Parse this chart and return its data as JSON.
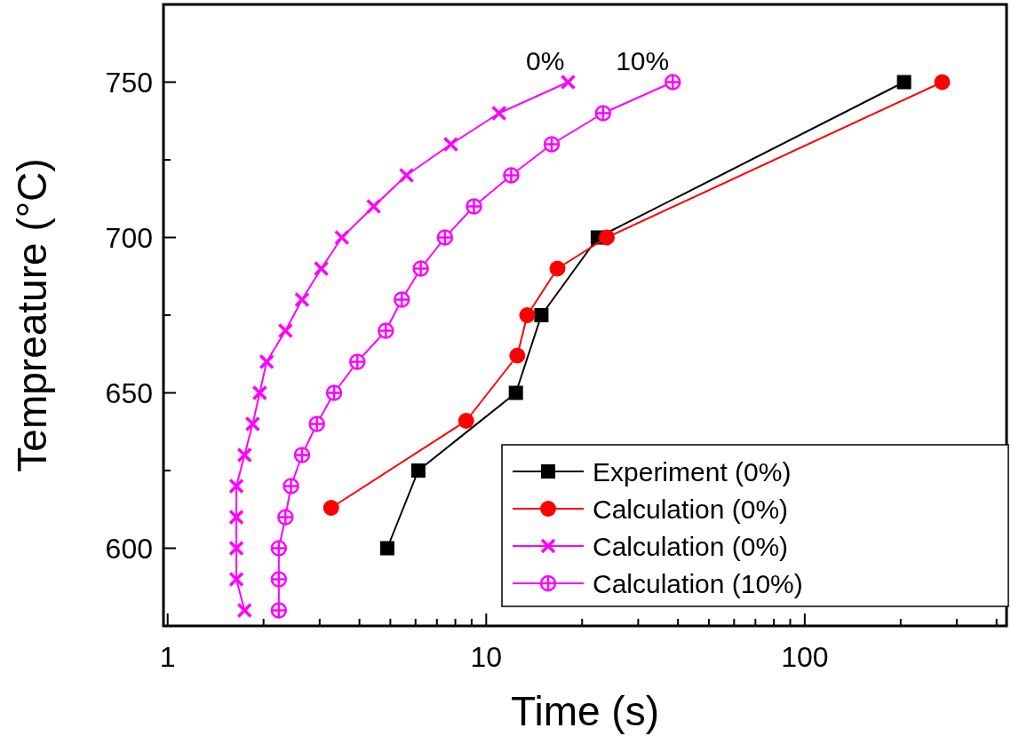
{
  "chart_data": {
    "type": "line",
    "xlabel": "Time  (s)",
    "ylabel": "Tempreature  (°C)",
    "log": "x",
    "xlim": [
      0.97,
      430
    ],
    "ylim": [
      575,
      775
    ],
    "xticks": [
      1,
      {
        "value": 2,
        "label": null
      },
      {
        "value": 3,
        "label": null
      },
      {
        "value": 4,
        "label": null
      },
      {
        "value": 5,
        "label": null
      },
      {
        "value": 6,
        "label": null
      },
      {
        "value": 7,
        "label": null
      },
      {
        "value": 8,
        "label": null
      },
      {
        "value": 9,
        "label": null
      },
      10,
      {
        "value": 20,
        "label": null
      },
      {
        "value": 30,
        "label": null
      },
      {
        "value": 40,
        "label": null
      },
      {
        "value": 50,
        "label": null
      },
      {
        "value": 60,
        "label": null
      },
      {
        "value": 70,
        "label": null
      },
      {
        "value": 80,
        "label": null
      },
      {
        "value": 90,
        "label": null
      },
      100,
      {
        "value": 200,
        "label": null
      },
      {
        "value": 300,
        "label": null
      },
      {
        "value": 400,
        "label": null
      }
    ],
    "yticks": [
      600,
      {
        "value": 625,
        "label": null
      },
      650,
      {
        "value": 675,
        "label": null
      },
      700,
      {
        "value": 725,
        "label": null
      },
      750
    ],
    "grid": false,
    "legend": "bottom right",
    "line_style": "solid",
    "annotations": [
      {
        "text": "0%",
        "x": 18.07,
        "y": 750
      },
      {
        "text": "10%",
        "x": 38.5,
        "y": 750
      }
    ],
    "series": [
      {
        "name": "Experiment (0%)",
        "color": "#000000",
        "marker": "square",
        "x": [
          4.89,
          6.12,
          12.39,
          14.9,
          22.4,
          205
        ],
        "values": [
          600,
          625,
          650,
          675,
          700,
          750
        ]
      },
      {
        "name": "Calculation (0%)",
        "color": "#ff0000",
        "marker": "circle",
        "x": [
          3.26,
          8.65,
          12.52,
          13.45,
          16.73,
          23.9,
          270
        ],
        "values": [
          613,
          641,
          662,
          675,
          690,
          700,
          750
        ]
      },
      {
        "name": "Calculation (0%)",
        "color": "#ff00ff",
        "marker": "cross",
        "x": [
          1.743,
          1.643,
          1.643,
          1.643,
          1.643,
          1.743,
          1.848,
          1.945,
          2.045,
          2.343,
          2.641,
          3.035,
          3.523,
          4.433,
          5.62,
          7.74,
          10.97,
          18.07
        ],
        "values": [
          580,
          590,
          600,
          610,
          620,
          630,
          640,
          650,
          660,
          670,
          680,
          690,
          700,
          710,
          720,
          730,
          740,
          750
        ]
      },
      {
        "name": "Calculation (10%)",
        "color": "#ff00ff",
        "marker": "circle-plus",
        "x": [
          2.233,
          2.233,
          2.233,
          2.343,
          2.439,
          2.641,
          2.94,
          3.33,
          3.94,
          4.84,
          5.43,
          6.23,
          7.42,
          9.15,
          11.98,
          16.05,
          23.27,
          38.5
        ],
        "values": [
          580,
          590,
          600,
          610,
          620,
          630,
          640,
          650,
          660,
          670,
          680,
          690,
          700,
          710,
          720,
          730,
          740,
          750
        ]
      }
    ]
  }
}
